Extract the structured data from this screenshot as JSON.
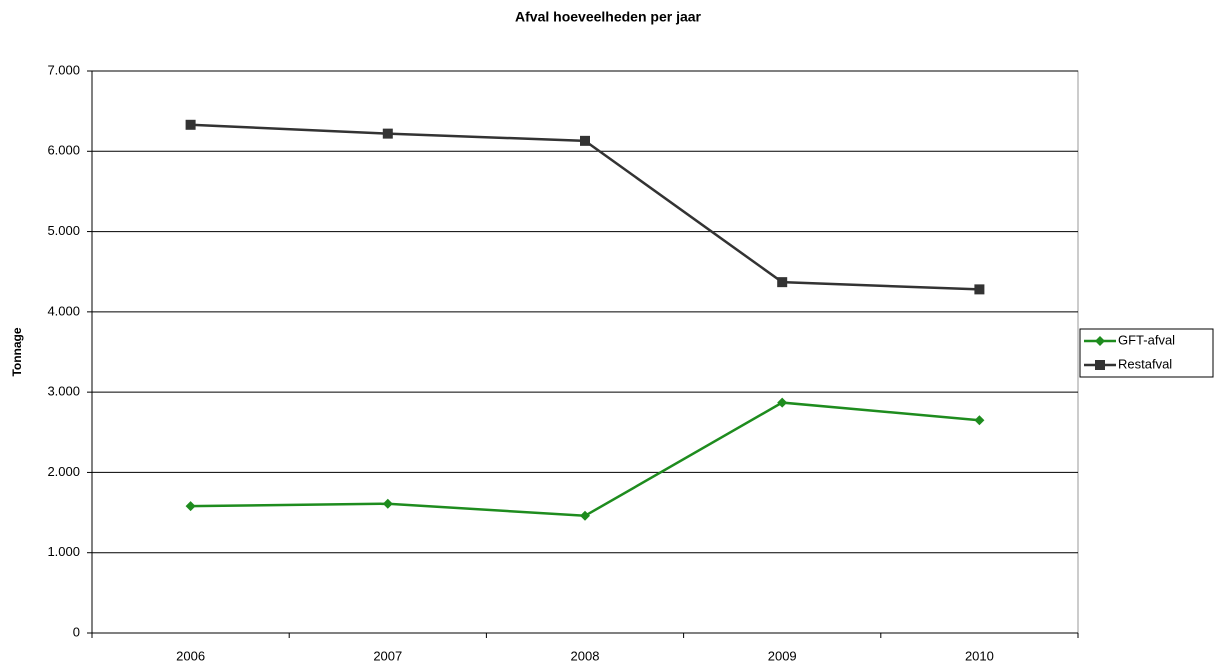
{
  "chart_data": {
    "type": "line",
    "title": "Afval hoeveelheden per jaar",
    "y_label": "Tonnage",
    "categories": [
      "2006",
      "2007",
      "2008",
      "2009",
      "2010"
    ],
    "series": [
      {
        "name": "GFT-afval",
        "color": "#1e8c1e",
        "marker": "diamond",
        "values": [
          1580,
          1610,
          1460,
          2870,
          2650
        ]
      },
      {
        "name": "Restafval",
        "color": "#333333",
        "marker": "square",
        "values": [
          6330,
          6220,
          6130,
          4370,
          4280
        ]
      }
    ],
    "ylim": [
      0,
      7000
    ],
    "yticks": [
      0,
      {
        "value": 1000,
        "label": "1.000"
      },
      {
        "value": 2000,
        "label": "2.000"
      },
      {
        "value": 3000,
        "label": "3.000"
      },
      {
        "value": 4000,
        "label": "4.000"
      },
      {
        "value": 5000,
        "label": "5.000"
      },
      {
        "value": 6000,
        "label": "6.000"
      },
      {
        "value": 7000,
        "label": "7.000"
      }
    ],
    "grid": true,
    "legend": "right"
  }
}
